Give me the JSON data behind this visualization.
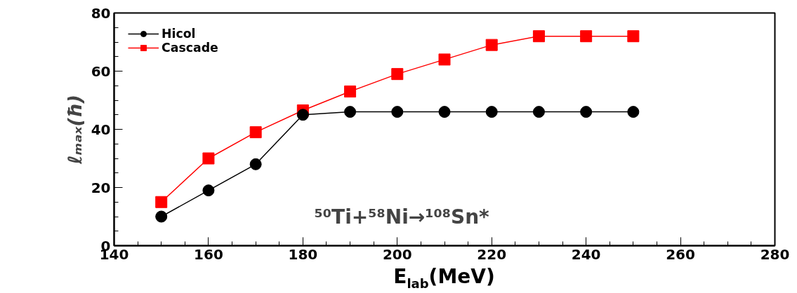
{
  "chart_data": {
    "type": "line",
    "xlabel": "E$_{lab}$(MeV)",
    "ylabel": "ℓₘₐₓ(ħ)",
    "x": [
      150,
      160,
      170,
      180,
      190,
      200,
      210,
      220,
      230,
      240,
      250
    ],
    "series": [
      {
        "name": "Hicol",
        "color": "#000000",
        "marker": "circle",
        "values": [
          10,
          19,
          28,
          45,
          46,
          46,
          46,
          46,
          46,
          46,
          46
        ]
      },
      {
        "name": "Cascade",
        "color": "#ff0000",
        "marker": "square",
        "values": [
          15,
          30,
          39,
          46.5,
          53,
          59,
          64,
          69,
          72,
          72,
          72
        ]
      }
    ],
    "xlim": [
      140,
      280
    ],
    "xticks": [
      140,
      160,
      180,
      200,
      220,
      240,
      260,
      280
    ],
    "ylim": [
      0,
      80
    ],
    "yticks": [
      0,
      20,
      40,
      60,
      80
    ],
    "annotations": [
      "⁵⁰Ti+⁵⁸Ni→¹⁰⁸Sn*"
    ],
    "legend": "top left",
    "grid": false,
    "line_style": "solid"
  }
}
